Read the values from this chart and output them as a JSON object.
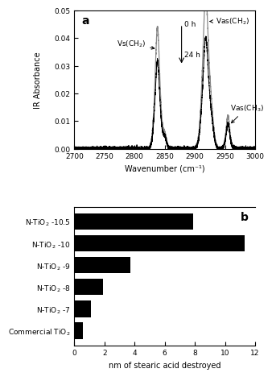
{
  "panel_a": {
    "title": "a",
    "xlabel": "Wavenumber (cm⁻¹)",
    "ylabel": "IR Absorbance",
    "xlim": [
      2700,
      3000
    ],
    "ylim": [
      0.0,
      0.05
    ],
    "yticks": [
      0.0,
      0.01,
      0.02,
      0.03,
      0.04,
      0.05
    ],
    "xticks": [
      2700,
      2750,
      2800,
      2850,
      2900,
      2950,
      3000
    ]
  },
  "panel_b": {
    "title": "b",
    "xlabel": "nm of stearic acid destroyed",
    "categories": [
      "Commercial TiO₂",
      "N-TiO₂ -7",
      "N-TiO₂ -8",
      "N-TiO₂ -9",
      "N-TiO₂ -10",
      "N-TiO₂ -10.5"
    ],
    "values": [
      0.55,
      1.1,
      1.9,
      3.7,
      11.3,
      7.9
    ],
    "xlim": [
      0,
      12
    ],
    "xticks": [
      0,
      2,
      4,
      6,
      8,
      10,
      12
    ],
    "bar_color": "#000000"
  }
}
